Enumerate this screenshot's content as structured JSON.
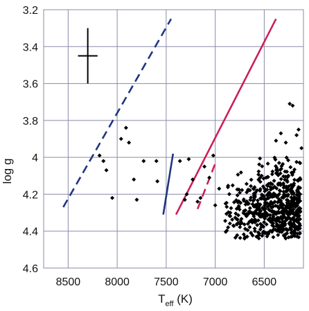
{
  "chart_data": {
    "type": "scatter",
    "title": "",
    "xlabel_main": "T",
    "xlabel_sub": "eff",
    "xlabel_unit": " (K)",
    "ylabel": "log g",
    "x_reversed": true,
    "y_reversed": true,
    "xlim": [
      8750,
      6100
    ],
    "ylim": [
      3.2,
      4.6
    ],
    "grid": true,
    "x_ticks": [
      {
        "value": 8500,
        "label": "8500"
      },
      {
        "value": 8000,
        "label": "8000"
      },
      {
        "value": 7500,
        "label": "7500"
      },
      {
        "value": 7000,
        "label": "7000"
      },
      {
        "value": 6500,
        "label": "6500"
      }
    ],
    "y_ticks": [
      {
        "value": 3.2,
        "label": "3.2"
      },
      {
        "value": 3.4,
        "label": "3.4"
      },
      {
        "value": 3.6,
        "label": "3.6"
      },
      {
        "value": 3.8,
        "label": "3.8"
      },
      {
        "value": 4.0,
        "label": "4"
      },
      {
        "value": 4.2,
        "label": "4.2"
      },
      {
        "value": 4.4,
        "label": "4.4"
      },
      {
        "value": 4.6,
        "label": "4.6"
      }
    ],
    "error_bar": {
      "x": 8300,
      "y": 3.45,
      "x_err": 100,
      "y_err": 0.15
    },
    "lines": [
      {
        "color": "#1f3580",
        "dash": true,
        "points": [
          [
            8550,
            4.27
          ],
          [
            7450,
            3.25
          ]
        ]
      },
      {
        "color": "#1f3580",
        "dash": false,
        "points": [
          [
            7530,
            4.31
          ],
          [
            7430,
            3.98
          ]
        ]
      },
      {
        "color": "#cc1f5a",
        "dash": false,
        "points": [
          [
            7400,
            4.31
          ],
          [
            6380,
            3.25
          ]
        ]
      },
      {
        "color": "#cc1f5a",
        "dash": true,
        "points": [
          [
            7180,
            4.28
          ],
          [
            6990,
            4.02
          ]
        ]
      }
    ],
    "scatter_sparse": [
      [
        8180,
        3.99
      ],
      [
        8140,
        4.02
      ],
      [
        8110,
        4.07
      ],
      [
        8050,
        4.22
      ],
      [
        7960,
        3.9
      ],
      [
        7910,
        3.84
      ],
      [
        7880,
        3.92
      ],
      [
        7830,
        4.12
      ],
      [
        7800,
        4.23
      ],
      [
        7730,
        4.02
      ],
      [
        7600,
        4.02
      ],
      [
        7590,
        4.13
      ],
      [
        7360,
        4.02
      ],
      [
        7310,
        4.23
      ],
      [
        7290,
        4.2
      ],
      [
        7270,
        4.01
      ],
      [
        7230,
        4.12
      ],
      [
        7180,
        4.24
      ],
      [
        7150,
        4.22
      ],
      [
        7110,
        4.05
      ],
      [
        7060,
        4.11
      ],
      [
        7020,
        3.99
      ],
      [
        7000,
        4.26
      ],
      [
        6960,
        4.17
      ],
      [
        6240,
        3.71
      ],
      [
        6210,
        3.72
      ],
      [
        6170,
        3.88
      ],
      [
        6150,
        3.85
      ],
      [
        6330,
        3.87
      ],
      [
        6380,
        3.91
      ],
      [
        6280,
        3.92
      ],
      [
        6120,
        3.95
      ]
    ],
    "scatter_cluster": {
      "count": 620,
      "x_range": [
        6910,
        6130
      ],
      "y_range": [
        4.0,
        4.44
      ],
      "x_peak": 6300,
      "y_peak": 4.28,
      "color": "#000000"
    }
  }
}
